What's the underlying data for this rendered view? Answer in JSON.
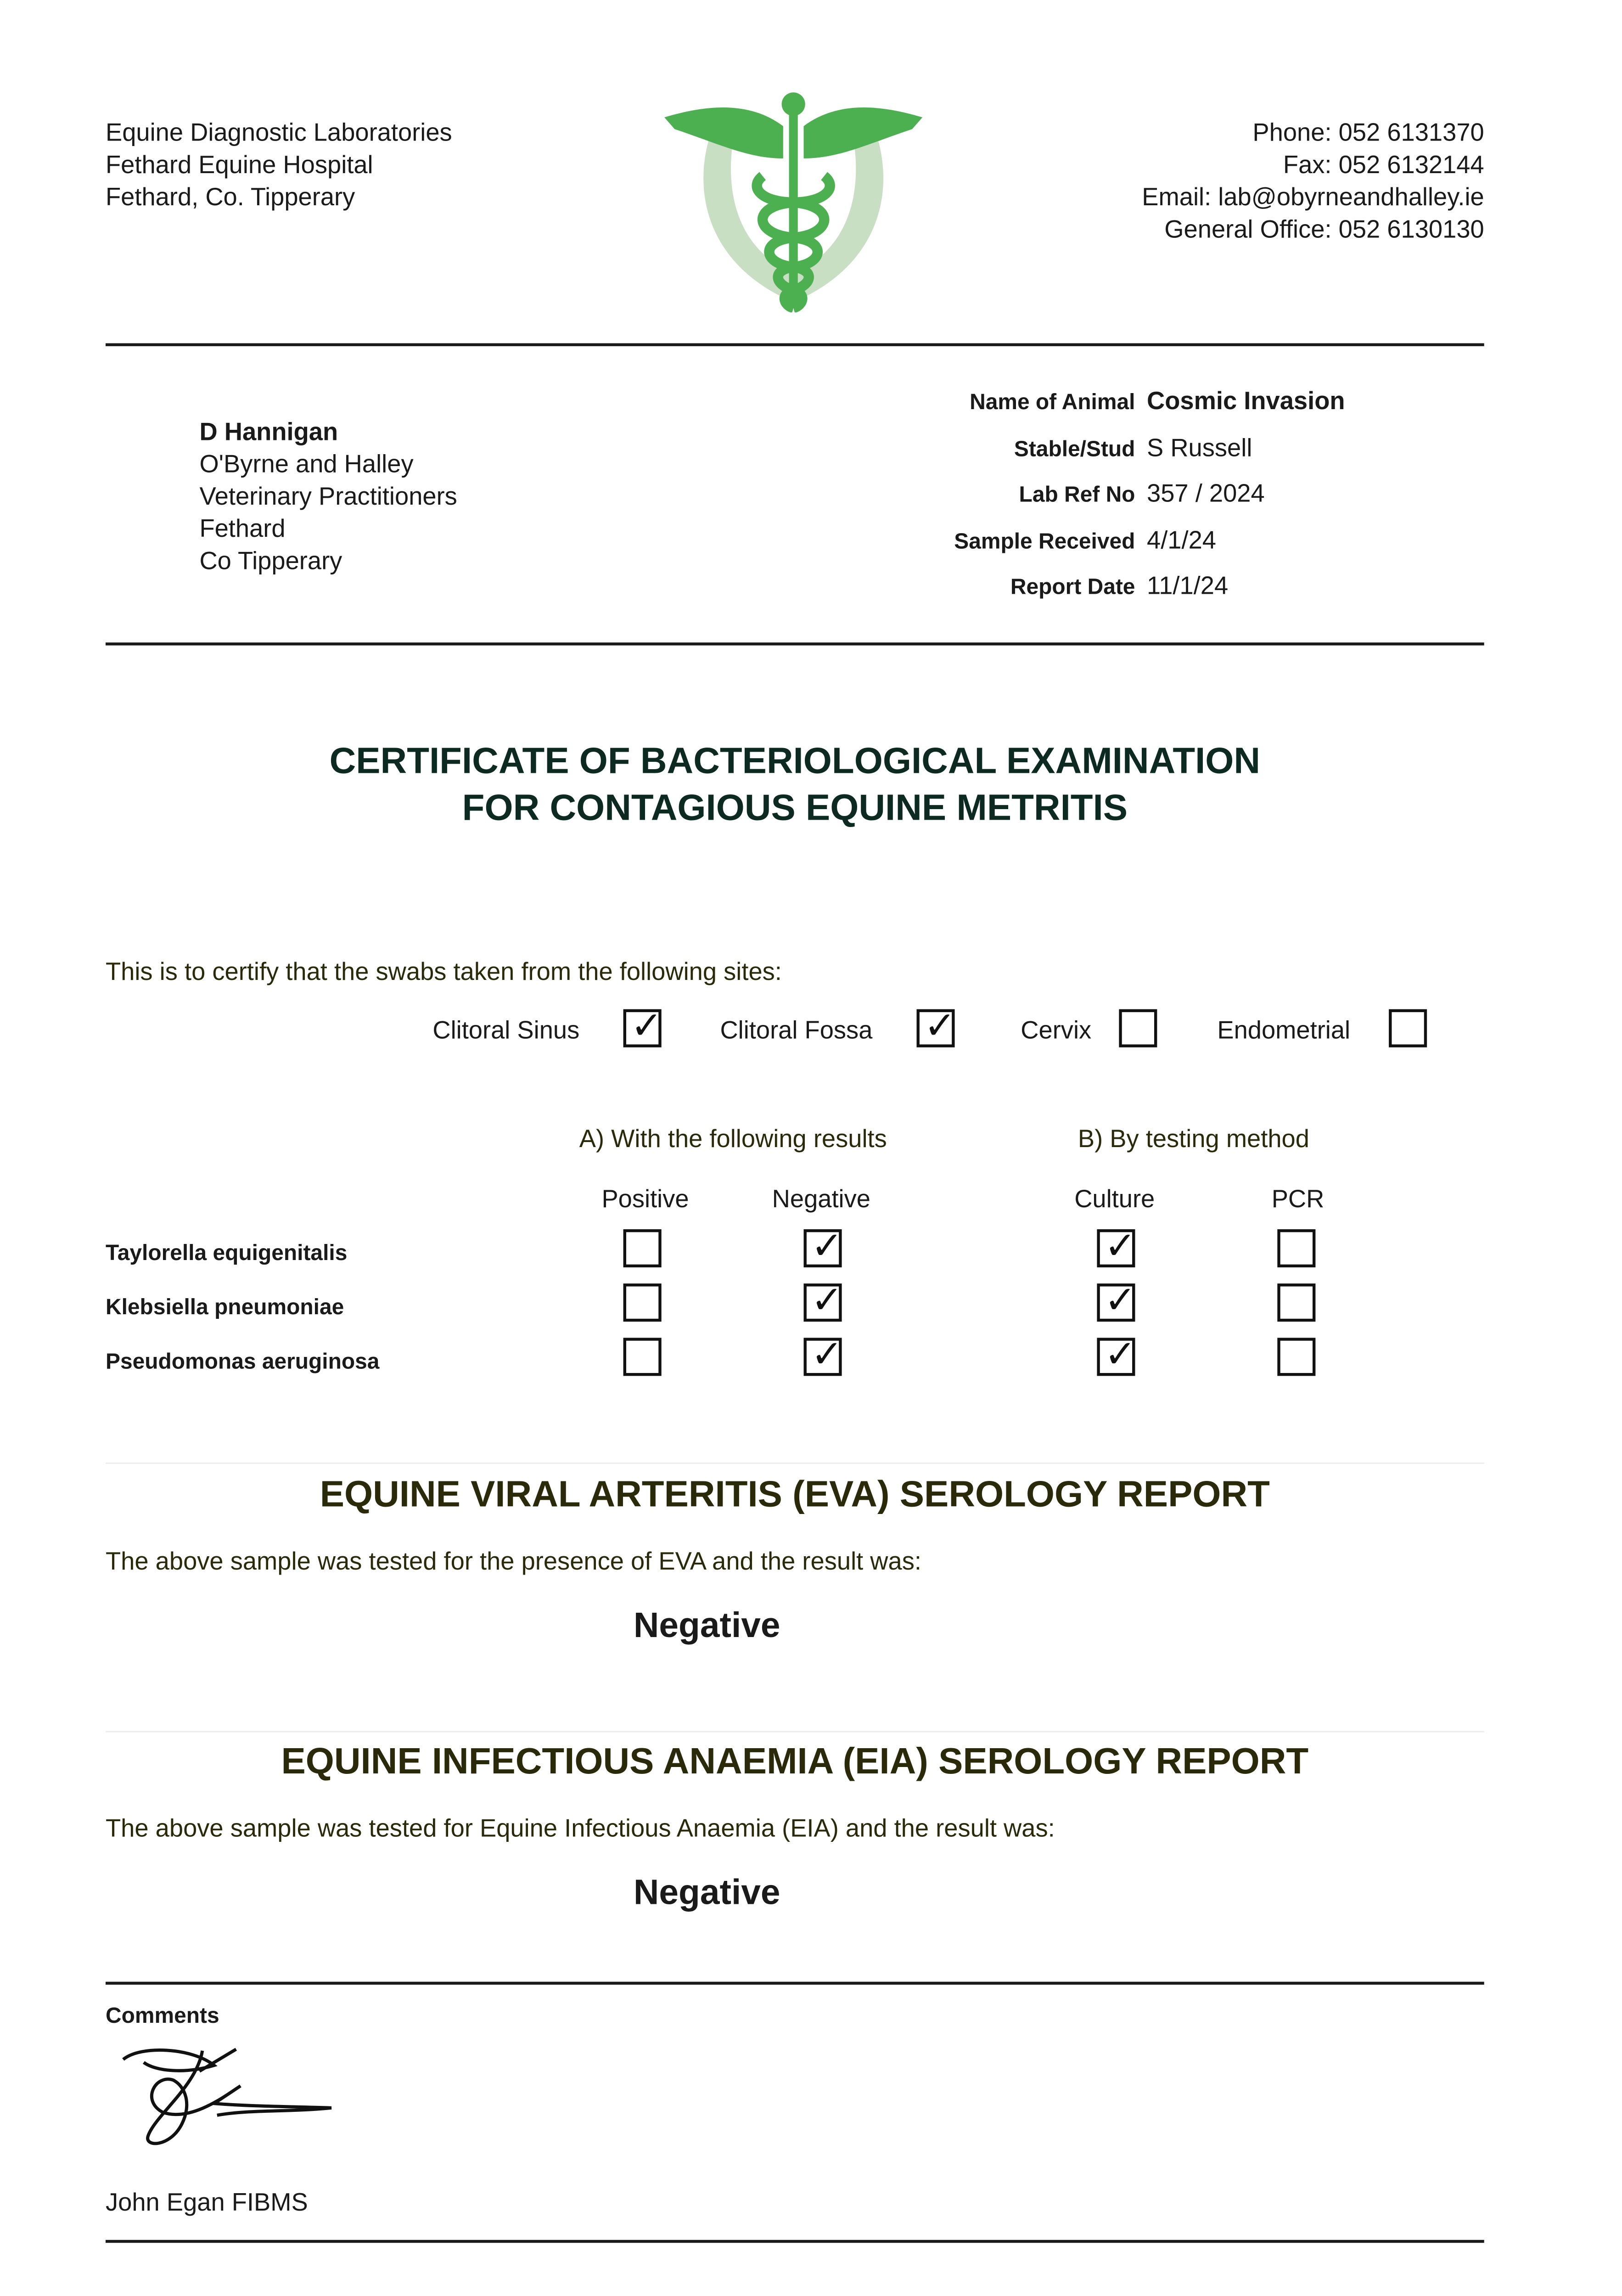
{
  "lab_address": [
    "Equine Diagnostic Laboratories",
    "Fethard Equine Hospital",
    "Fethard, Co. Tipperary"
  ],
  "contact": [
    "Phone: 052 6131370",
    "Fax: 052 6132144",
    "Email: lab@obyrneandhalley.ie",
    "General Office: 052 6130130"
  ],
  "colors": {
    "logo_green": "#4caf50",
    "horseshoe": "#c9dfc4",
    "title": "#0d2a22",
    "section_title": "#2a2a0a"
  },
  "recipient": {
    "name": "D Hannigan",
    "lines": [
      "O'Byrne and Halley",
      "Veterinary Practitioners",
      "Fethard",
      "Co Tipperary"
    ]
  },
  "animal_info": [
    {
      "label": "Name of Animal",
      "value": "Cosmic Invasion"
    },
    {
      "label": "Stable/Stud",
      "value": "S Russell"
    },
    {
      "label": "Lab Ref No",
      "value": "357 / 2024"
    },
    {
      "label": "Sample Received",
      "value": "4/1/24"
    },
    {
      "label": "Report Date",
      "value": "11/1/24"
    }
  ],
  "certificate_title": [
    "CERTIFICATE OF BACTERIOLOGICAL EXAMINATION",
    "FOR CONTAGIOUS EQUINE METRITIS"
  ],
  "certify_text": "This is to certify that the swabs taken from the following sites:",
  "sites": [
    {
      "label": "Clitoral Sinus",
      "checked": true
    },
    {
      "label": "Clitoral Fossa",
      "checked": true
    },
    {
      "label": "Cervix",
      "checked": false
    },
    {
      "label": "Endometrial",
      "checked": false
    }
  ],
  "results_heading": "A) With the following results",
  "method_heading": "B) By testing method",
  "columns": [
    "Positive",
    "Negative",
    "Culture",
    "PCR"
  ],
  "organisms": [
    {
      "name": "Taylorella equigenitalis",
      "positive": false,
      "negative": true,
      "culture": true,
      "pcr": false
    },
    {
      "name": "Klebsiella pneumoniae",
      "positive": false,
      "negative": true,
      "culture": true,
      "pcr": false
    },
    {
      "name": "Pseudomonas aeruginosa",
      "positive": false,
      "negative": true,
      "culture": true,
      "pcr": false
    }
  ],
  "eva": {
    "title": "EQUINE VIRAL ARTERITIS (EVA) SEROLOGY REPORT",
    "text": "The above sample was tested for the presence of EVA and the result was:",
    "result": "Negative"
  },
  "eia": {
    "title": "EQUINE INFECTIOUS ANAEMIA (EIA) SEROLOGY REPORT",
    "text": "The above sample was tested for Equine Infectious Anaemia (EIA) and the result was:",
    "result": "Negative"
  },
  "comments_label": "Comments",
  "signatory": "John Egan FIBMS",
  "check_glyph": "✓"
}
